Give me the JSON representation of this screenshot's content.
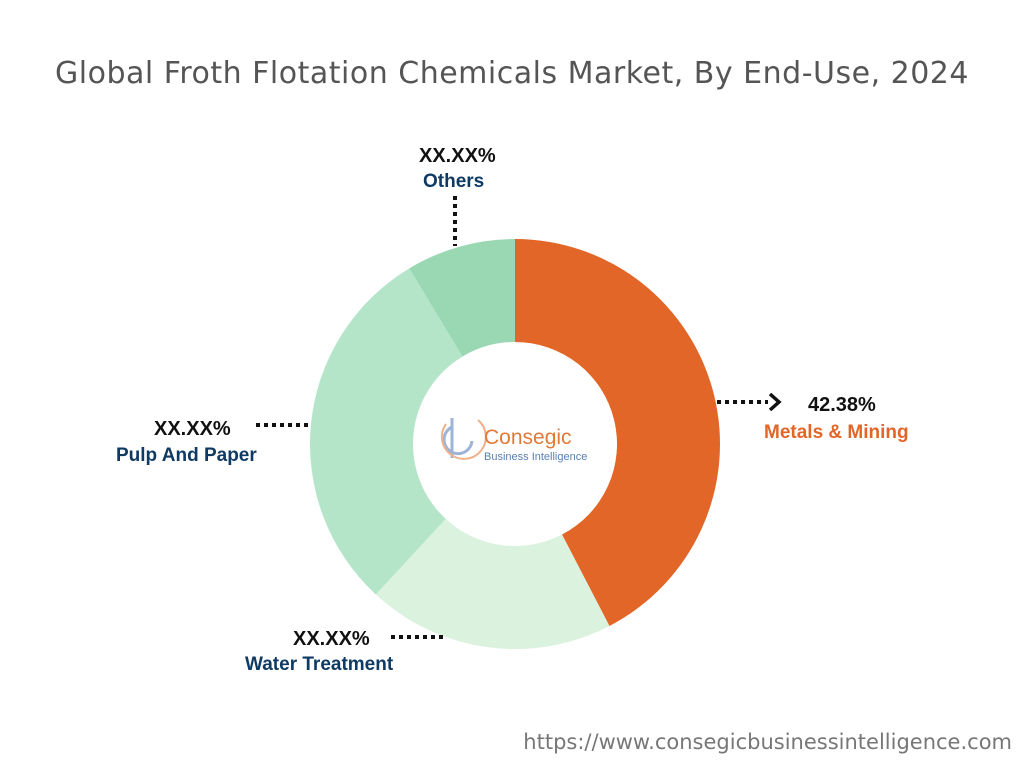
{
  "title": "Global Froth Flotation Chemicals Market, By End-Use, 2024",
  "footer_url": "https://www.consegicbusinessintelligence.com",
  "logo": {
    "name": "Consegic",
    "tagline": "Business Intelligence"
  },
  "chart_data": {
    "type": "pie",
    "donut": true,
    "title": "Global Froth Flotation Chemicals Market, By End-Use, 2024",
    "slices": [
      {
        "label": "Metals & Mining",
        "value": 42.38,
        "value_label": "42.38%",
        "color": "#e26627",
        "label_color": "#e26627"
      },
      {
        "label": "Water Treatment",
        "value": 19.5,
        "value_label": "XX.XX%",
        "color": "#daf2de",
        "label_color": "#0f3a63"
      },
      {
        "label": "Pulp And Paper",
        "value": 29.5,
        "value_label": "XX.XX%",
        "color": "#b5e5c9",
        "label_color": "#0f3a63"
      },
      {
        "label": "Others",
        "value": 8.62,
        "value_label": "XX.XX%",
        "color": "#9ad8b4",
        "label_color": "#0f3a63"
      }
    ]
  }
}
